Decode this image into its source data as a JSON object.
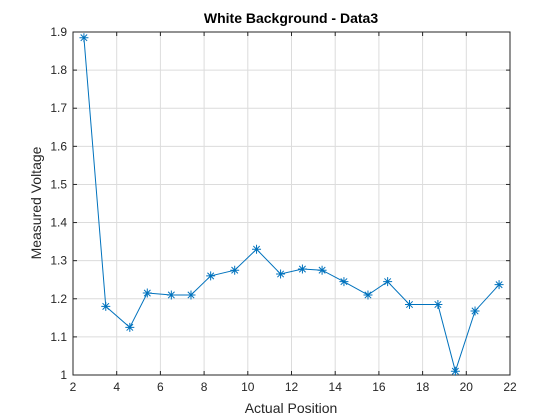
{
  "chart_data": {
    "type": "line",
    "title": "White Background - Data3",
    "xlabel": "Actual Position",
    "ylabel": "Measured Voltage",
    "xlim": [
      2,
      22
    ],
    "ylim": [
      1,
      1.9
    ],
    "xticks": [
      "2",
      "4",
      "6",
      "8",
      "10",
      "12",
      "14",
      "16",
      "18",
      "20",
      "22"
    ],
    "yticks": [
      "1",
      "1.1",
      "1.2",
      "1.3",
      "1.4",
      "1.5",
      "1.6",
      "1.7",
      "1.8",
      "1.9"
    ],
    "grid": true,
    "marker": "asterisk",
    "line_color": "#0072bd",
    "series": [
      {
        "x": [
          2.5,
          3.5,
          4.6,
          5.4,
          6.5,
          7.4,
          8.3,
          9.4,
          10.4,
          11.5,
          12.5,
          13.4,
          14.4,
          15.5,
          16.4,
          17.4,
          18.7,
          19.5,
          20.4,
          21.5
        ],
        "y": [
          1.885,
          1.18,
          1.125,
          1.215,
          1.21,
          1.21,
          1.26,
          1.275,
          1.33,
          1.265,
          1.278,
          1.275,
          1.245,
          1.21,
          1.245,
          1.185,
          1.185,
          1.01,
          1.168,
          1.237
        ]
      }
    ]
  }
}
